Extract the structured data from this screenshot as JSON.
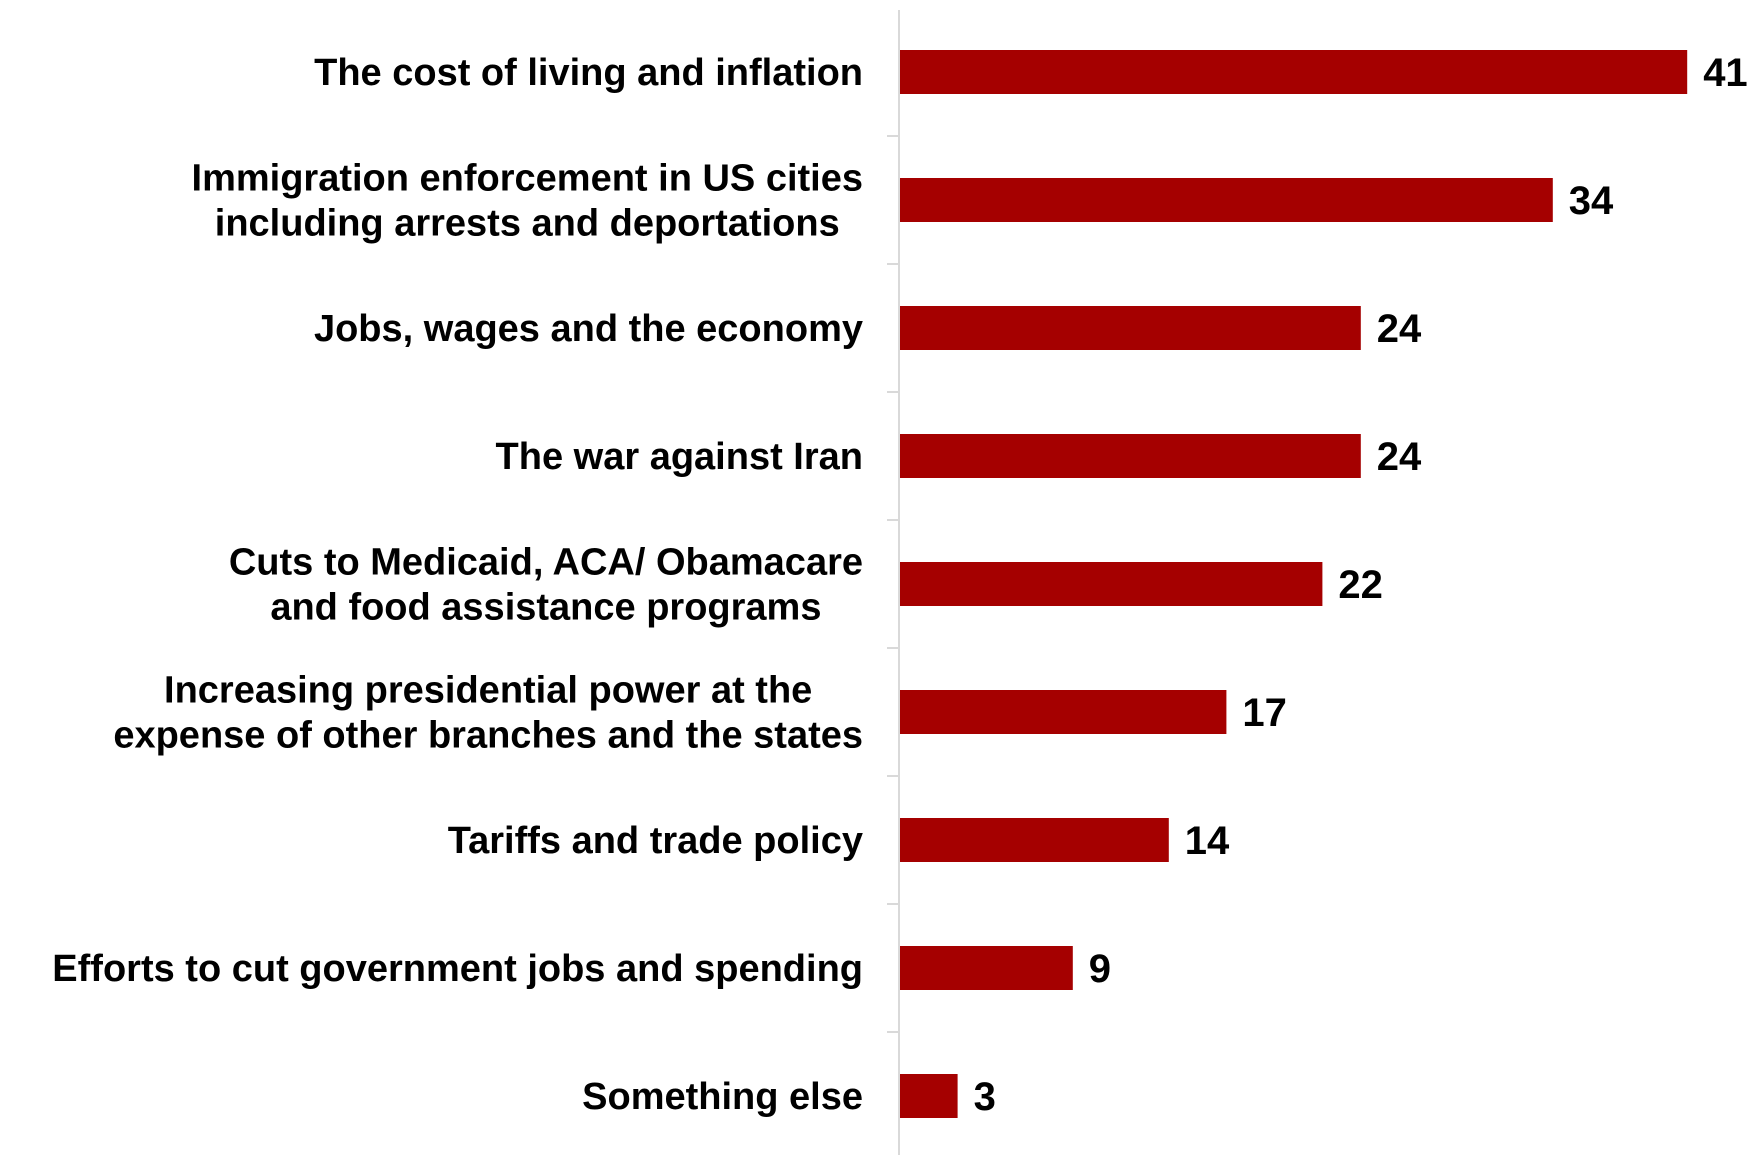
{
  "chart_data": {
    "type": "bar",
    "orientation": "horizontal",
    "categories": [
      [
        "The cost of living and inflation"
      ],
      [
        "Immigration enforcement in US cities",
        "including arrests and deportations"
      ],
      [
        "Jobs, wages and the economy"
      ],
      [
        "The war against Iran"
      ],
      [
        "Cuts to Medicaid, ACA/ Obamacare",
        "and food assistance programs"
      ],
      [
        "Increasing presidential power at the",
        "expense of other branches and the states"
      ],
      [
        "Tariffs and trade policy"
      ],
      [
        "Efforts to cut government jobs and spending"
      ],
      [
        "Something else"
      ]
    ],
    "values": [
      41,
      34,
      24,
      24,
      22,
      17,
      14,
      9,
      3
    ],
    "data_labels": [
      "41",
      "34",
      "24",
      "24",
      "22",
      "17",
      "14",
      "9",
      "3"
    ],
    "xlim": [
      0,
      41
    ],
    "bar_color": "#a50000",
    "axis_color": "#d9d9d9",
    "grid": false,
    "legend": "none"
  }
}
